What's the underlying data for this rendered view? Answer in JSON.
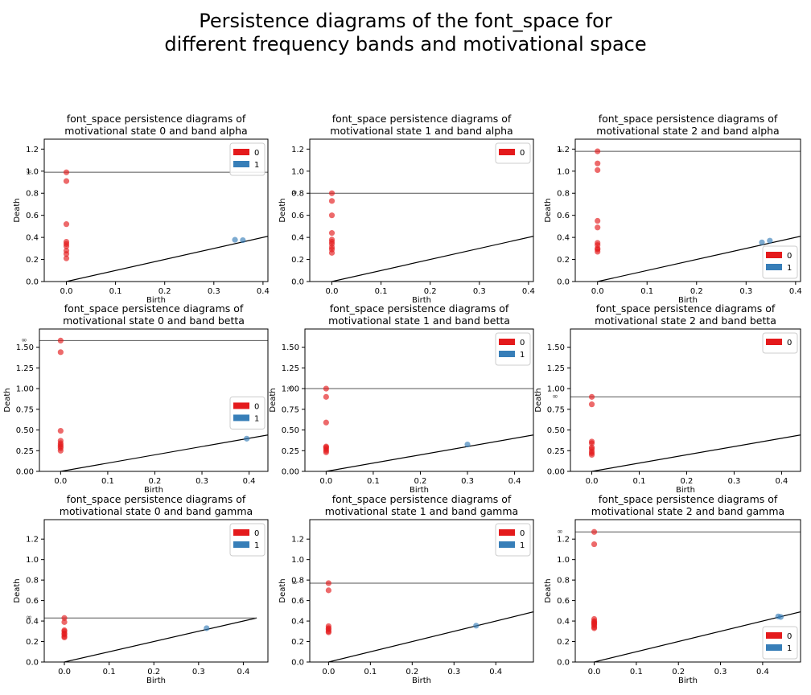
{
  "suptitle": {
    "line1": "Persistence diagrams of the font_space for",
    "line2": "different frequency bands and motivational space"
  },
  "colors": {
    "dim0": "#e41a1c",
    "dim1": "#377eb8",
    "frame": "#000000",
    "infline": "#555555"
  },
  "chart_data": [
    {
      "type": "scatter",
      "title": [
        "font_space persistence diagrams of",
        "motivational state 0 and band alpha"
      ],
      "xlabel": "Birth",
      "ylabel": "Death",
      "xlim": [
        -0.045,
        0.41
      ],
      "ylim": [
        0,
        1.29
      ],
      "xticks": [
        0.0,
        0.1,
        0.2,
        0.3,
        0.4
      ],
      "xticklabels": [
        "0.0",
        "0.1",
        "0.2",
        "0.3",
        "0.4"
      ],
      "yticks": [
        0.0,
        0.2,
        0.4,
        0.6,
        0.8,
        1.0,
        1.2
      ],
      "yticklabels": [
        "0.0",
        "0.2",
        "0.4",
        "0.6",
        "0.8",
        "1.0",
        "1.2"
      ],
      "inf_level": 0.99,
      "inf_label": "∞",
      "diagonal_from": 0.0,
      "legend": {
        "position": "upper right",
        "entries": [
          "0",
          "1"
        ]
      },
      "series": [
        {
          "name": "0",
          "x": [
            0,
            0,
            0,
            0,
            0,
            0,
            0,
            0,
            0
          ],
          "y": [
            0.99,
            0.91,
            0.52,
            0.36,
            0.34,
            0.32,
            0.28,
            0.25,
            0.21
          ]
        },
        {
          "name": "1",
          "x": [
            0.343,
            0.359
          ],
          "y": [
            0.378,
            0.375
          ]
        }
      ]
    },
    {
      "type": "scatter",
      "title": [
        "font_space persistence diagrams of",
        "motivational state 1 and band alpha"
      ],
      "xlabel": "Birth",
      "ylabel": "Death",
      "xlim": [
        -0.045,
        0.41
      ],
      "ylim": [
        0,
        1.29
      ],
      "xticks": [
        0.0,
        0.1,
        0.2,
        0.3,
        0.4
      ],
      "xticklabels": [
        "0.0",
        "0.1",
        "0.2",
        "0.3",
        "0.4"
      ],
      "yticks": [
        0.0,
        0.2,
        0.4,
        0.6,
        0.8,
        1.0,
        1.2
      ],
      "yticklabels": [
        "0.0",
        "0.2",
        "0.4",
        "0.6",
        "0.8",
        "1.0",
        "1.2"
      ],
      "inf_level": 0.8,
      "inf_label": "∞",
      "diagonal_from": 0.0,
      "legend": {
        "position": "upper right",
        "entries": [
          "0"
        ]
      },
      "series": [
        {
          "name": "0",
          "x": [
            0,
            0,
            0,
            0,
            0,
            0,
            0,
            0,
            0,
            0
          ],
          "y": [
            0.8,
            0.73,
            0.6,
            0.44,
            0.38,
            0.36,
            0.34,
            0.31,
            0.29,
            0.26
          ]
        }
      ]
    },
    {
      "type": "scatter",
      "title": [
        "font_space persistence diagrams of",
        "motivational state 2 and band alpha"
      ],
      "xlabel": "Birth",
      "ylabel": "Death",
      "xlim": [
        -0.045,
        0.41
      ],
      "ylim": [
        0,
        1.29
      ],
      "xticks": [
        0.0,
        0.1,
        0.2,
        0.3,
        0.4
      ],
      "xticklabels": [
        "0.0",
        "0.1",
        "0.2",
        "0.3",
        "0.4"
      ],
      "yticks": [
        0.0,
        0.2,
        0.4,
        0.6,
        0.8,
        1.0,
        1.2
      ],
      "yticklabels": [
        "0.0",
        "0.2",
        "0.4",
        "0.6",
        "0.8",
        "1.0",
        "1.2"
      ],
      "inf_level": 1.18,
      "inf_label": "∞",
      "diagonal_from": 0.0,
      "legend": {
        "position": "lower right",
        "entries": [
          "0",
          "1"
        ]
      },
      "series": [
        {
          "name": "0",
          "x": [
            0,
            0,
            0,
            0,
            0,
            0,
            0,
            0,
            0,
            0
          ],
          "y": [
            1.18,
            1.07,
            1.01,
            0.55,
            0.49,
            0.35,
            0.33,
            0.3,
            0.29,
            0.27
          ]
        },
        {
          "name": "1",
          "x": [
            0.332,
            0.348
          ],
          "y": [
            0.355,
            0.37
          ]
        }
      ]
    },
    {
      "type": "scatter",
      "title": [
        "font_space persistence diagrams of",
        "motivational state 0 and band betta"
      ],
      "xlabel": "Birth",
      "ylabel": "Death",
      "xlim": [
        -0.045,
        0.44
      ],
      "ylim": [
        0,
        1.72
      ],
      "xticks": [
        0.0,
        0.1,
        0.2,
        0.3,
        0.4
      ],
      "xticklabels": [
        "0.0",
        "0.1",
        "0.2",
        "0.3",
        "0.4"
      ],
      "yticks": [
        0.0,
        0.25,
        0.5,
        0.75,
        1.0,
        1.25,
        1.5
      ],
      "yticklabels": [
        "0.00",
        "0.25",
        "0.50",
        "0.75",
        "1.00",
        "1.25",
        "1.50"
      ],
      "inf_level": 1.58,
      "inf_label": "∞",
      "diagonal_from": 0.0,
      "legend": {
        "position": "center right",
        "entries": [
          "0",
          "1"
        ]
      },
      "series": [
        {
          "name": "0",
          "x": [
            0,
            0,
            0,
            0,
            0,
            0,
            0,
            0,
            0
          ],
          "y": [
            1.58,
            1.44,
            0.49,
            0.37,
            0.34,
            0.32,
            0.3,
            0.28,
            0.25
          ]
        },
        {
          "name": "1",
          "x": [
            0.395
          ],
          "y": [
            0.395
          ]
        }
      ]
    },
    {
      "type": "scatter",
      "title": [
        "font_space persistence diagrams of",
        "motivational state 1 and band betta"
      ],
      "xlabel": "Birth",
      "ylabel": "Death",
      "xlim": [
        -0.045,
        0.44
      ],
      "ylim": [
        0,
        1.72
      ],
      "xticks": [
        0.0,
        0.1,
        0.2,
        0.3,
        0.4
      ],
      "xticklabels": [
        "0.0",
        "0.1",
        "0.2",
        "0.3",
        "0.4"
      ],
      "yticks": [
        0.0,
        0.25,
        0.5,
        0.75,
        1.0,
        1.25,
        1.5
      ],
      "yticklabels": [
        "0.00",
        "0.25",
        "0.50",
        "0.75",
        "1.00",
        "1.25",
        "1.50"
      ],
      "inf_level": 1.0,
      "inf_label": "∞",
      "diagonal_from": 0.0,
      "legend": {
        "position": "upper right",
        "entries": [
          "0",
          "1"
        ]
      },
      "series": [
        {
          "name": "0",
          "x": [
            0,
            0,
            0,
            0,
            0,
            0,
            0,
            0
          ],
          "y": [
            1.0,
            0.9,
            0.59,
            0.3,
            0.29,
            0.27,
            0.25,
            0.23
          ]
        },
        {
          "name": "1",
          "x": [
            0.3
          ],
          "y": [
            0.325
          ]
        }
      ]
    },
    {
      "type": "scatter",
      "title": [
        "font_space persistence diagrams of",
        "motivational state 2 and band betta"
      ],
      "xlabel": "Birth",
      "ylabel": "Death",
      "xlim": [
        -0.045,
        0.44
      ],
      "ylim": [
        0,
        1.72
      ],
      "xticks": [
        0.0,
        0.1,
        0.2,
        0.3,
        0.4
      ],
      "xticklabels": [
        "0.0",
        "0.1",
        "0.2",
        "0.3",
        "0.4"
      ],
      "yticks": [
        0.0,
        0.25,
        0.5,
        0.75,
        1.0,
        1.25,
        1.5
      ],
      "yticklabels": [
        "0.00",
        "0.25",
        "0.50",
        "0.75",
        "1.00",
        "1.25",
        "1.50"
      ],
      "inf_level": 0.9,
      "inf_label": "∞",
      "diagonal_from": 0.0,
      "legend": {
        "position": "upper right",
        "entries": [
          "0"
        ]
      },
      "series": [
        {
          "name": "0",
          "x": [
            0,
            0,
            0,
            0,
            0,
            0,
            0,
            0,
            0
          ],
          "y": [
            0.9,
            0.81,
            0.36,
            0.34,
            0.29,
            0.27,
            0.24,
            0.22,
            0.2
          ]
        }
      ]
    },
    {
      "type": "scatter",
      "title": [
        "font_space persistence diagrams of",
        "motivational state 0 and band gamma"
      ],
      "xlabel": "Birth",
      "ylabel": "Death",
      "xlim": [
        -0.045,
        0.455
      ],
      "ylim": [
        0,
        1.39
      ],
      "xticks": [
        0.0,
        0.1,
        0.2,
        0.3,
        0.4
      ],
      "xticklabels": [
        "0.0",
        "0.1",
        "0.2",
        "0.3",
        "0.4"
      ],
      "yticks": [
        0.0,
        0.2,
        0.4,
        0.6,
        0.8,
        1.0,
        1.2
      ],
      "yticklabels": [
        "0.0",
        "0.2",
        "0.4",
        "0.6",
        "0.8",
        "1.0",
        "1.2"
      ],
      "inf_level": 0.43,
      "inf_label": "∞",
      "inf_line_x": [
        -0.045,
        0.43
      ],
      "diagonal_from": 0.0,
      "diagonal_to": 0.43,
      "legend": {
        "position": "upper right",
        "entries": [
          "0",
          "1"
        ]
      },
      "series": [
        {
          "name": "0",
          "x": [
            0,
            0,
            0,
            0,
            0,
            0,
            0,
            0
          ],
          "y": [
            0.43,
            0.39,
            0.31,
            0.3,
            0.28,
            0.27,
            0.25,
            0.24
          ]
        },
        {
          "name": "1",
          "x": [
            0.318
          ],
          "y": [
            0.33
          ]
        }
      ]
    },
    {
      "type": "scatter",
      "title": [
        "font_space persistence diagrams of",
        "motivational state 1 and band gamma"
      ],
      "xlabel": "Birth",
      "ylabel": "Death",
      "xlim": [
        -0.045,
        0.49
      ],
      "ylim": [
        0,
        1.39
      ],
      "xticks": [
        0.0,
        0.1,
        0.2,
        0.3,
        0.4
      ],
      "xticklabels": [
        "0.0",
        "0.1",
        "0.2",
        "0.3",
        "0.4"
      ],
      "yticks": [
        0.0,
        0.2,
        0.4,
        0.6,
        0.8,
        1.0,
        1.2
      ],
      "yticklabels": [
        "0.0",
        "0.2",
        "0.4",
        "0.6",
        "0.8",
        "1.0",
        "1.2"
      ],
      "inf_level": 0.77,
      "inf_label": "∞",
      "diagonal_from": 0.0,
      "legend": {
        "position": "upper right",
        "entries": [
          "0",
          "1"
        ]
      },
      "series": [
        {
          "name": "0",
          "x": [
            0,
            0,
            0,
            0,
            0,
            0,
            0
          ],
          "y": [
            0.77,
            0.7,
            0.35,
            0.33,
            0.32,
            0.3,
            0.29
          ]
        },
        {
          "name": "1",
          "x": [
            0.353
          ],
          "y": [
            0.355
          ]
        }
      ]
    },
    {
      "type": "scatter",
      "title": [
        "font_space persistence diagrams of",
        "motivational state 2 and band gamma"
      ],
      "xlabel": "Birth",
      "ylabel": "Death",
      "xlim": [
        -0.045,
        0.49
      ],
      "ylim": [
        0,
        1.39
      ],
      "xticks": [
        0.0,
        0.1,
        0.2,
        0.3,
        0.4
      ],
      "xticklabels": [
        "0.0",
        "0.1",
        "0.2",
        "0.3",
        "0.4"
      ],
      "yticks": [
        0.0,
        0.2,
        0.4,
        0.6,
        0.8,
        1.0,
        1.2
      ],
      "yticklabels": [
        "0.0",
        "0.2",
        "0.4",
        "0.6",
        "0.8",
        "1.0",
        "1.2"
      ],
      "inf_level": 1.27,
      "inf_label": "∞",
      "diagonal_from": 0.0,
      "legend": {
        "position": "lower right",
        "entries": [
          "0",
          "1"
        ]
      },
      "series": [
        {
          "name": "0",
          "x": [
            0,
            0,
            0,
            0,
            0,
            0,
            0,
            0,
            0,
            0
          ],
          "y": [
            1.27,
            1.15,
            0.42,
            0.4,
            0.39,
            0.38,
            0.37,
            0.36,
            0.34,
            0.33
          ]
        },
        {
          "name": "1",
          "x": [
            0.437,
            0.443
          ],
          "y": [
            0.445,
            0.44
          ]
        }
      ]
    }
  ]
}
